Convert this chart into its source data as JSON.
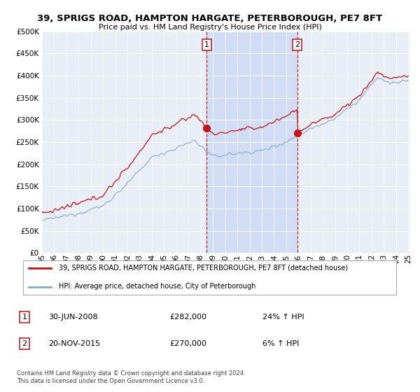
{
  "title": "39, SPRIGS ROAD, HAMPTON HARGATE, PETERBOROUGH, PE7 8FT",
  "subtitle": "Price paid vs. HM Land Registry's House Price Index (HPI)",
  "legend_line1": "39, SPRIGS ROAD, HAMPTON HARGATE, PETERBOROUGH, PE7 8FT (detached house)",
  "legend_line2": "HPI: Average price, detached house, City of Peterborough",
  "footnote": "Contains HM Land Registry data © Crown copyright and database right 2024.\nThis data is licensed under the Open Government Licence v3.0.",
  "transaction1_date": "30-JUN-2008",
  "transaction1_price": "£282,000",
  "transaction1_hpi": "24% ↑ HPI",
  "transaction2_date": "20-NOV-2015",
  "transaction2_price": "£270,000",
  "transaction2_hpi": "6% ↑ HPI",
  "ylim": [
    0,
    500000
  ],
  "yticks": [
    0,
    50000,
    100000,
    150000,
    200000,
    250000,
    300000,
    350000,
    400000,
    450000,
    500000
  ],
  "background_color": "#ffffff",
  "plot_bg_color": "#e8eef8",
  "shade_color": "#d0ddf5",
  "red_color": "#cc1111",
  "blue_color": "#88aacc",
  "vline_color": "#cc2222",
  "transaction1_x": 2008.5,
  "transaction2_x": 2015.9,
  "xstart": 1995,
  "xend": 2025
}
